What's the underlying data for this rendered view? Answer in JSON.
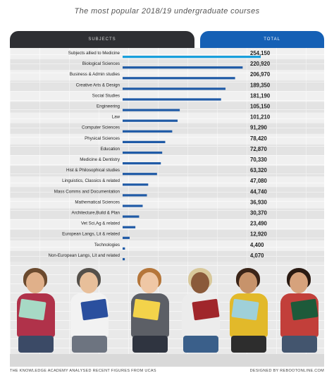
{
  "title": "The most popular 2018/19 undergraduate courses",
  "header": {
    "subjects_label": "SUBJECTS",
    "total_label": "TOTAL"
  },
  "footer": {
    "source": "THE KNOWLEDGE ACADEMY ANALYSED RECENT FIGURES FROM UCAS",
    "credit": "DESIGNED BY REBOOTONLINE.COM"
  },
  "colors": {
    "bar": "#1f5aa6",
    "bar_highlight": "#1aa0dc",
    "header_dark": "#2e2f33",
    "header_blue": "#1560b5"
  },
  "chart_data": {
    "type": "bar",
    "orientation": "horizontal",
    "categories": [
      "Subjects allied to Medicine",
      "Biological Sciences",
      "Business & Admin studies",
      "Creative Arts & Design",
      "Social Studies",
      "Engineering",
      "Law",
      "Computer Sciences",
      "Physical Sciences",
      "Education",
      "Medicine & Dentistry",
      "Hist & Philosophical studies",
      "Linguistics, Classics & related",
      "Mass Comms and Documentation",
      "Mathematical Sciences",
      "Architecture,Build & Plan",
      "Vet Sci,Ag & related",
      "European Langs, Lit & related",
      "Technologies",
      "Non-European Langs, Lit and related"
    ],
    "values": [
      254150,
      220920,
      206970,
      189350,
      181190,
      105150,
      101210,
      91290,
      78420,
      72870,
      70330,
      63320,
      47080,
      44740,
      36930,
      30370,
      23490,
      12920,
      4400,
      4070
    ],
    "value_labels": [
      "254,150",
      "220,920",
      "206,970",
      "189,350",
      "181,190",
      "105,150",
      "101,210",
      "91,290",
      "78,420",
      "72,870",
      "70,330",
      "63,320",
      "47,080",
      "44,740",
      "36,930",
      "30,370",
      "23,490",
      "12,920",
      "4,400",
      "4,070"
    ],
    "xlim": [
      0,
      254150
    ],
    "grid": false,
    "legend": "none"
  }
}
